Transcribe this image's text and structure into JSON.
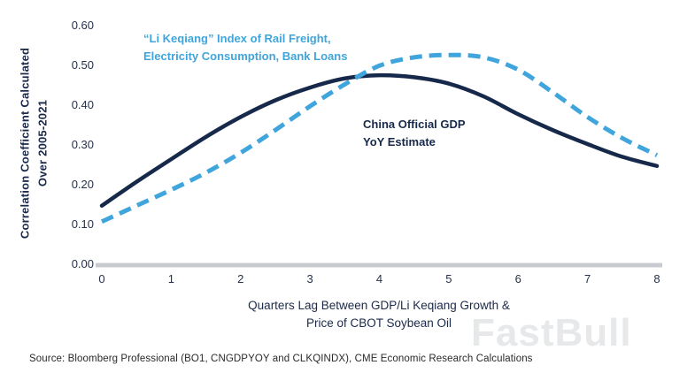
{
  "chart_data": {
    "type": "line",
    "title": "",
    "xlabel_line1": "Quarters Lag Between GDP/Li Keqiang Growth &",
    "xlabel_line2": "Price of CBOT Soybean Oil",
    "ylabel_line1": "Correlation Coefficient Calculated",
    "ylabel_line2": "Over 2005-2021",
    "xlim": [
      0,
      8
    ],
    "ylim": [
      0,
      0.6
    ],
    "x_ticks": [
      0,
      1,
      2,
      3,
      4,
      5,
      6,
      7,
      8
    ],
    "y_tick_labels": [
      "0.00",
      "0.10",
      "0.20",
      "0.30",
      "0.40",
      "0.50",
      "0.60"
    ],
    "y_ticks": [
      0.0,
      0.1,
      0.2,
      0.3,
      0.4,
      0.5,
      0.6
    ],
    "grid": false,
    "legend_position": "inline-annotations",
    "x": [
      0,
      0.5,
      1,
      1.5,
      2,
      2.5,
      3,
      3.5,
      4,
      4.5,
      5,
      5.5,
      6,
      6.5,
      7,
      7.5,
      8
    ],
    "series": [
      {
        "name": "China Official GDP YoY Estimate",
        "color": "#16294a",
        "style": "solid",
        "values": [
          0.145,
          0.205,
          0.262,
          0.318,
          0.368,
          0.41,
          0.442,
          0.465,
          0.473,
          0.468,
          0.452,
          0.42,
          0.375,
          0.335,
          0.3,
          0.268,
          0.245
        ]
      },
      {
        "name": "“Li Keqiang” Index of Rail Freight, Electricity Consumption, Bank Loans",
        "color": "#3fa5dc",
        "style": "dashed",
        "values": [
          0.105,
          0.145,
          0.185,
          0.228,
          0.278,
          0.335,
          0.395,
          0.45,
          0.497,
          0.518,
          0.524,
          0.518,
          0.487,
          0.43,
          0.368,
          0.315,
          0.272
        ]
      }
    ],
    "annotations": [
      {
        "series": "li-keqiang",
        "color": "#3fa5dc",
        "lines": [
          "“Li Keqiang” Index of Rail Freight,",
          "Electricity Consumption, Bank Loans"
        ]
      },
      {
        "series": "gdp",
        "color": "#16294a",
        "lines": [
          "China Official GDP",
          "YoY Estimate"
        ]
      }
    ]
  },
  "source": "Source: Bloomberg Professional (BO1, CNGDPYOY and CLKQINDX), CME Economic Research Calculations",
  "watermark": "FastBull",
  "colors": {
    "gdp_line": "#16294a",
    "li_keqiang_line": "#3fa5dc",
    "axis_baseline": "#c8ccd0",
    "tick_text": "#25314a",
    "watermark": "#e7e8ea"
  }
}
